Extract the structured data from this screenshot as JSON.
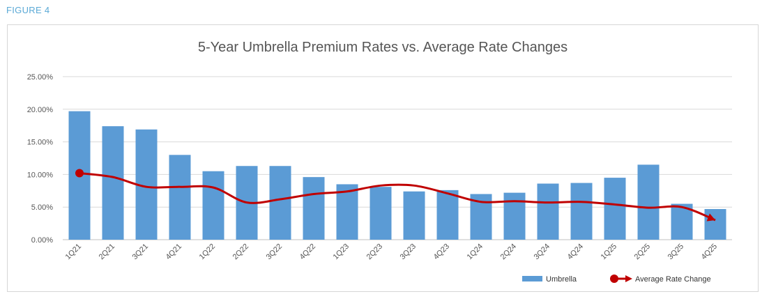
{
  "figure_label": "FIGURE 4",
  "chart_data": {
    "type": "bar",
    "title": "5-Year Umbrella Premium Rates vs. Average Rate Changes",
    "categories": [
      "1Q21",
      "2Q21",
      "3Q21",
      "4Q21",
      "1Q22",
      "2Q22",
      "3Q22",
      "4Q22",
      "1Q23",
      "2Q23",
      "3Q23",
      "4Q23",
      "1Q24",
      "2Q24",
      "3Q24",
      "4Q24",
      "1Q25",
      "2Q25",
      "3Q25",
      "4Q25"
    ],
    "ylim": [
      0,
      25
    ],
    "yticks": [
      "0.00%",
      "5.00%",
      "10.00%",
      "15.00%",
      "20.00%",
      "25.00%"
    ],
    "grid": true,
    "legend_position": "bottom-right",
    "series": [
      {
        "name": "Umbrella",
        "type": "bar",
        "color": "#5b9bd5",
        "values": [
          19.7,
          17.4,
          16.9,
          13.0,
          10.5,
          11.3,
          11.3,
          9.6,
          8.5,
          8.1,
          7.4,
          7.6,
          7.0,
          7.2,
          8.6,
          8.7,
          9.5,
          11.5,
          5.5,
          4.7
        ]
      },
      {
        "name": "Average Rate Change",
        "type": "line",
        "color": "#c00000",
        "values": [
          10.2,
          9.6,
          8.1,
          8.1,
          8.0,
          5.7,
          6.2,
          7.0,
          7.4,
          8.3,
          8.3,
          7.1,
          5.8,
          5.9,
          5.7,
          5.8,
          5.4,
          4.9,
          5.0,
          3.0
        ]
      }
    ]
  }
}
